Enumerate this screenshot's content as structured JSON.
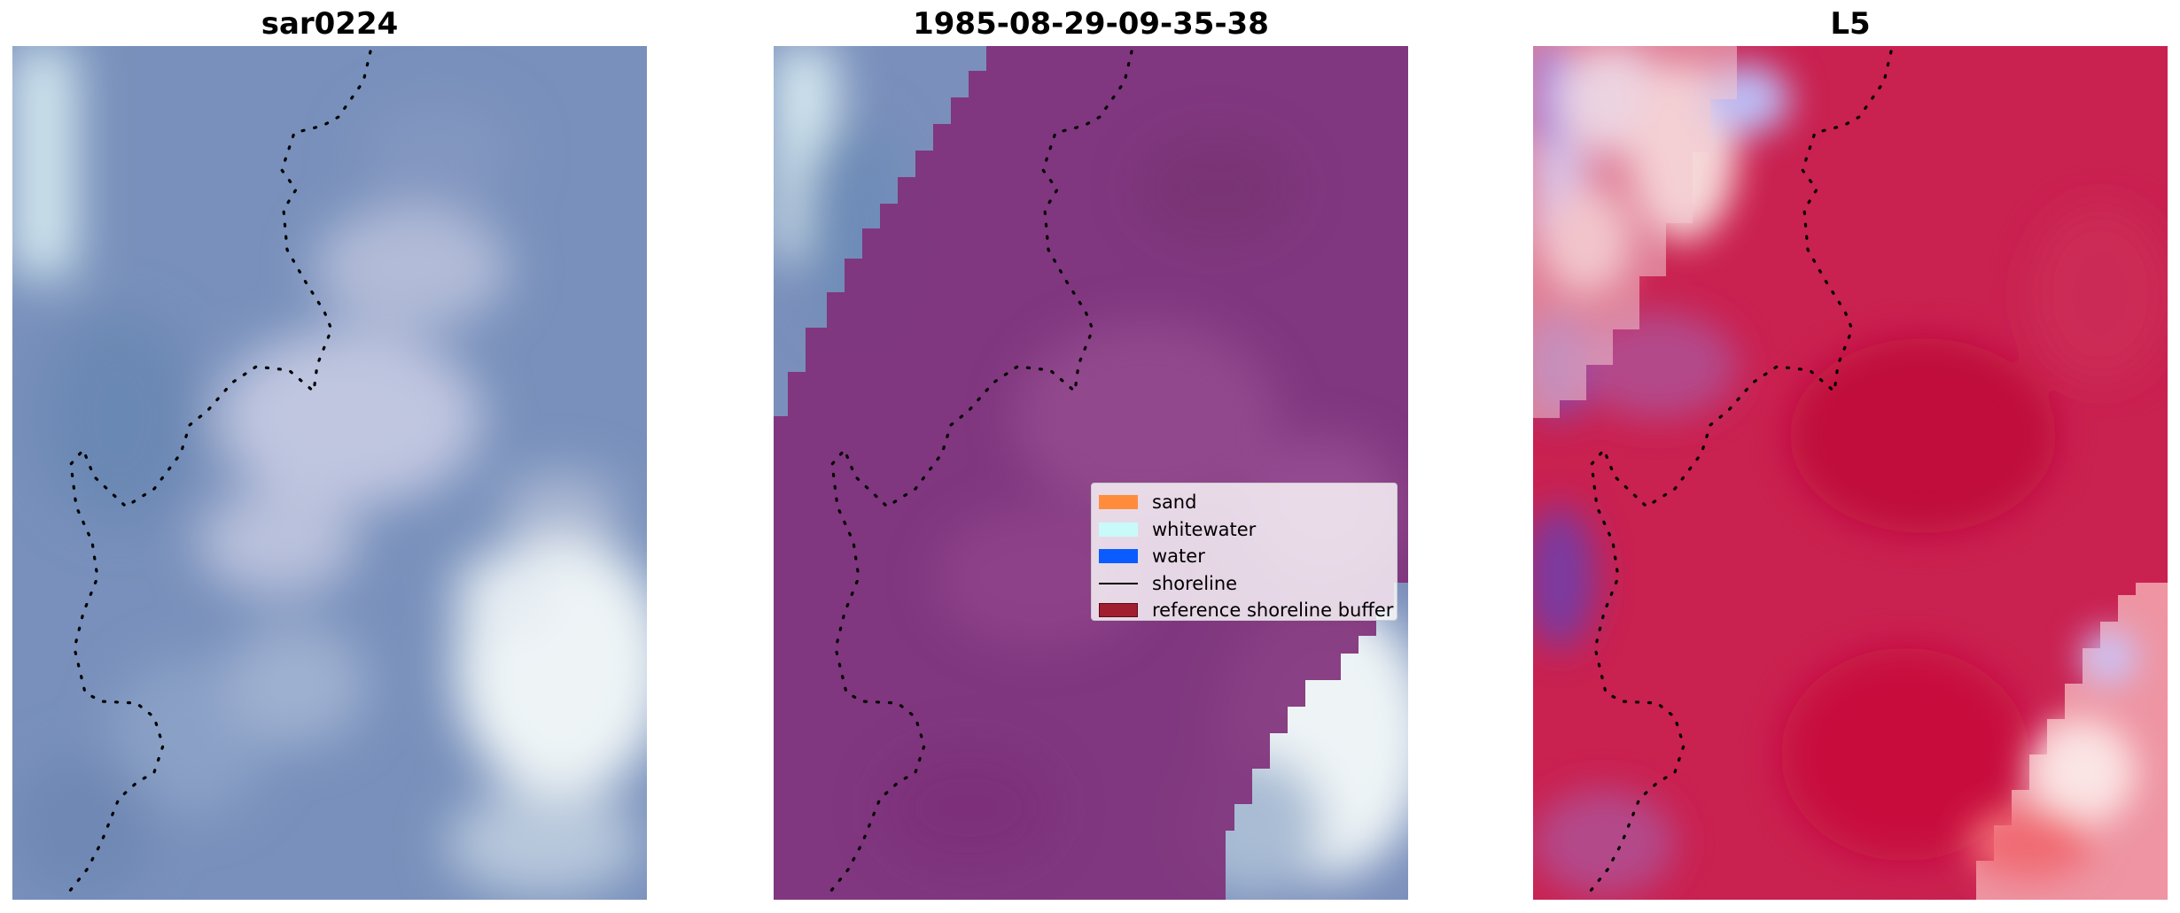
{
  "panels": [
    {
      "title": "sar0224",
      "kind": "rgb"
    },
    {
      "title": "1985-08-29-09-35-38",
      "kind": "classified"
    },
    {
      "title": "L5",
      "kind": "index"
    }
  ],
  "legend": {
    "items": [
      {
        "label": "sand",
        "kind": "patch",
        "color": "#ff8c3d"
      },
      {
        "label": "whitewater",
        "kind": "patch",
        "color": "#c8fafa"
      },
      {
        "label": "water",
        "kind": "patch",
        "color": "#0a5cff"
      },
      {
        "label": "shoreline",
        "kind": "line",
        "color": "#000000"
      },
      {
        "label": "reference shoreline buffer",
        "kind": "patch",
        "color": "#a01e30"
      }
    ]
  },
  "colors": {
    "rgb_base": "#7b93bd",
    "rgb_light": "#cfd6ea",
    "rgb_white": "#f4f8fa",
    "buffer_overlay": "#7e3a7a",
    "index_base": "#c91e4a",
    "index_blue": "#1a1aff"
  }
}
